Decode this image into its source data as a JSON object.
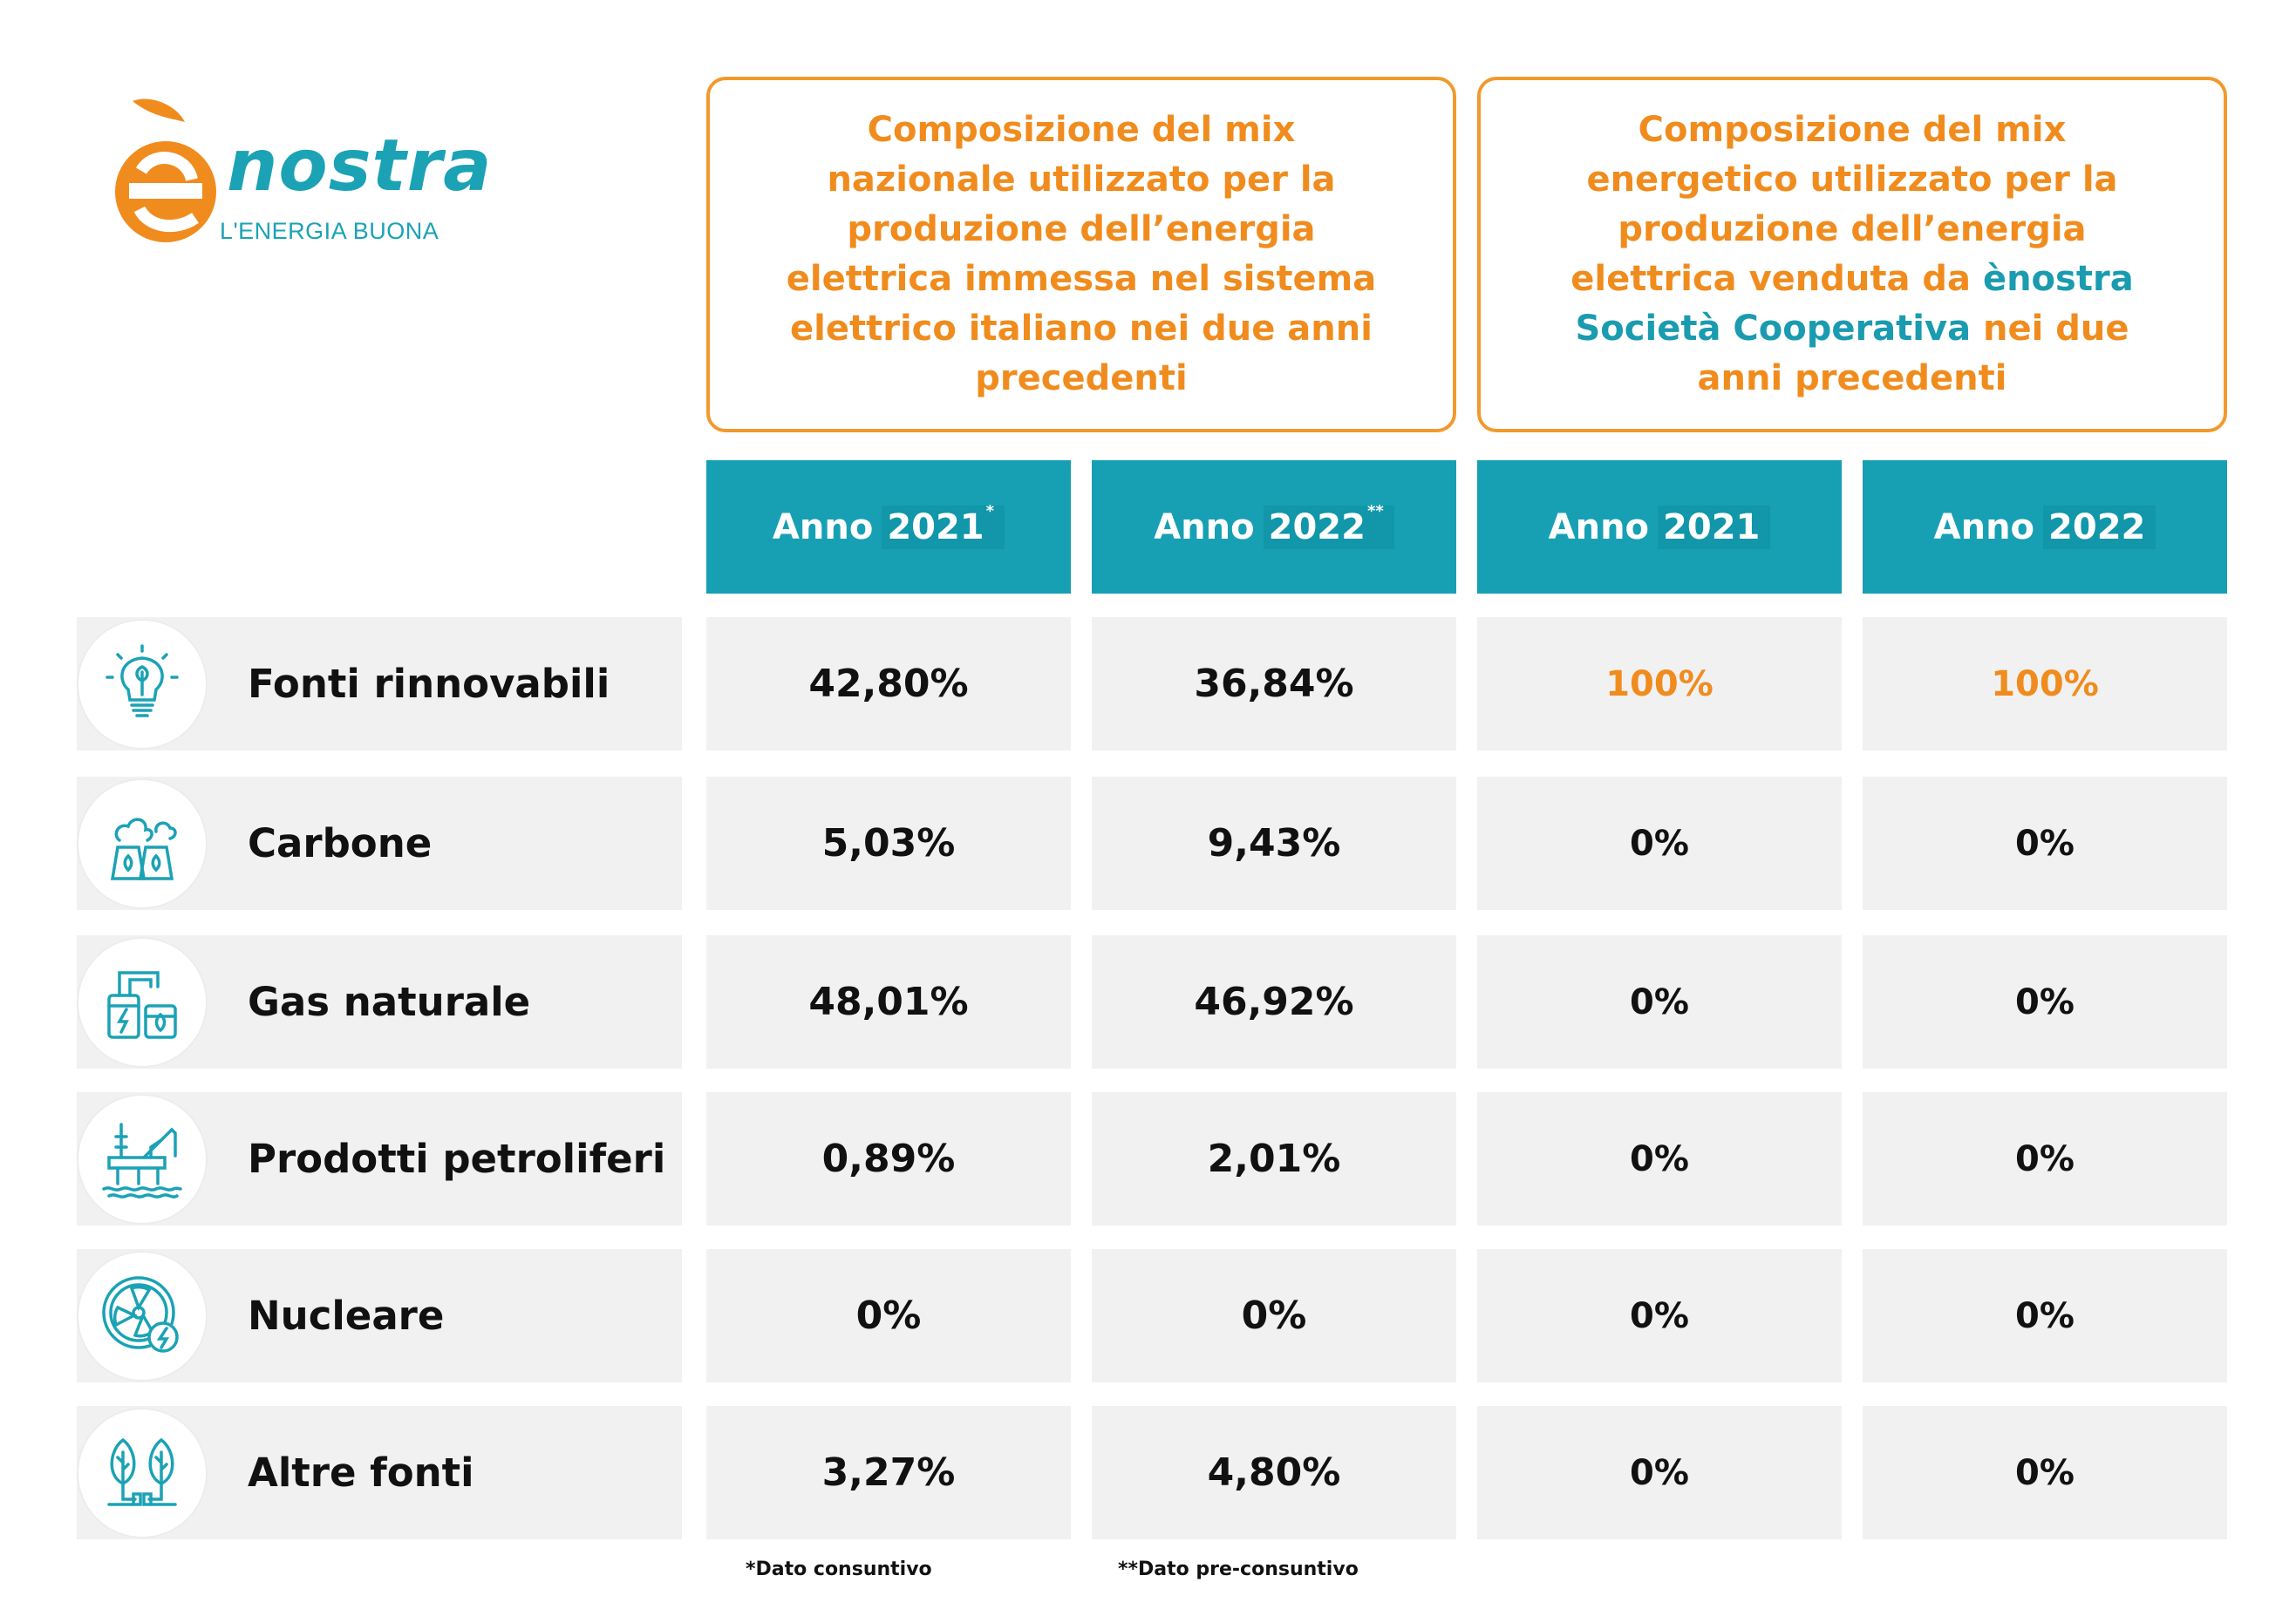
{
  "logo": {
    "word": "ènostra",
    "tagline": "L'ENERGIA BUONA"
  },
  "headers": {
    "national": "Composizione del mix nazionale utilizzato per la produzione dell’energia elettrica immessa nel sistema elettrico italiano nei due anni precedenti",
    "enostra_before": "Composizione del mix energetico utilizzato per la produzione dell’energia elettrica venduta da ",
    "enostra_highlight": "ènostra Società Cooperativa",
    "enostra_after": " nei due anni precedenti"
  },
  "columns": [
    {
      "prefix": "Anno",
      "year": "2021",
      "mark": "*"
    },
    {
      "prefix": "Anno",
      "year": "2022",
      "mark": "**"
    },
    {
      "prefix": "Anno",
      "year": "2021",
      "mark": ""
    },
    {
      "prefix": "Anno",
      "year": "2022",
      "mark": ""
    }
  ],
  "rows": [
    {
      "label": "Fonti rinnovabili",
      "icon": "lightbulb-leaf-icon",
      "values": [
        "42,80%",
        "36,84%",
        "100%",
        "100%"
      ]
    },
    {
      "label": "Carbone",
      "icon": "cooling-towers-icon",
      "values": [
        "5,03%",
        "9,43%",
        "0%",
        "0%"
      ]
    },
    {
      "label": "Gas naturale",
      "icon": "gas-plant-icon",
      "values": [
        "48,01%",
        "46,92%",
        "0%",
        "0%"
      ]
    },
    {
      "label": "Prodotti petroliferi",
      "icon": "oil-rig-icon",
      "values": [
        "0,89%",
        "2,01%",
        "0%",
        "0%"
      ]
    },
    {
      "label": "Nucleare",
      "icon": "nuclear-fan-icon",
      "values": [
        "0%",
        "0%",
        "0%",
        "0%"
      ]
    },
    {
      "label": "Altre fonti",
      "icon": "trees-plug-icon",
      "values": [
        "3,27%",
        "4,80%",
        "0%",
        "0%"
      ]
    }
  ],
  "footnotes": {
    "consuntivo": "*Dato consuntivo",
    "pre_consuntivo": "**Dato pre-consuntivo"
  },
  "colors": {
    "orange": "#f08c1e",
    "teal": "#17a0b4",
    "row_bg": "#f1f1f1"
  }
}
